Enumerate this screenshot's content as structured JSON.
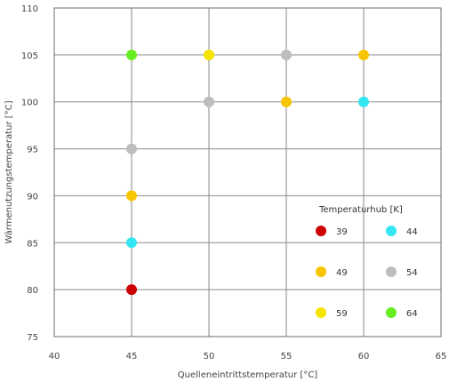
{
  "chart_data": {
    "type": "scatter",
    "xlabel": "Quelleneintrittstemperatur [°C]",
    "ylabel": "Wärmenutzungstemperatur [°C]",
    "xlim": [
      40,
      65
    ],
    "ylim": [
      75,
      110
    ],
    "x_ticks": [
      40,
      45,
      50,
      55,
      60,
      65
    ],
    "y_ticks": [
      75,
      80,
      85,
      90,
      95,
      100,
      105,
      110
    ],
    "grid": true,
    "legend": {
      "title": "Temperaturhub [K]",
      "placement": "bottom-right"
    },
    "series": [
      {
        "name": "39",
        "color": "#cc0000",
        "points": [
          [
            45,
            80
          ]
        ]
      },
      {
        "name": "44",
        "color": "#33e6f2",
        "points": [
          [
            45,
            85
          ],
          [
            60,
            100
          ]
        ]
      },
      {
        "name": "49",
        "color": "#f7c600",
        "points": [
          [
            45,
            90
          ],
          [
            55,
            100
          ],
          [
            60,
            105
          ]
        ]
      },
      {
        "name": "54",
        "color": "#bdbdbd",
        "points": [
          [
            45,
            95
          ],
          [
            50,
            100
          ],
          [
            55,
            105
          ]
        ]
      },
      {
        "name": "59",
        "color": "#f5e300",
        "points": [
          [
            50,
            105
          ]
        ]
      },
      {
        "name": "64",
        "color": "#66ee22",
        "points": [
          [
            45,
            105
          ]
        ]
      }
    ]
  }
}
